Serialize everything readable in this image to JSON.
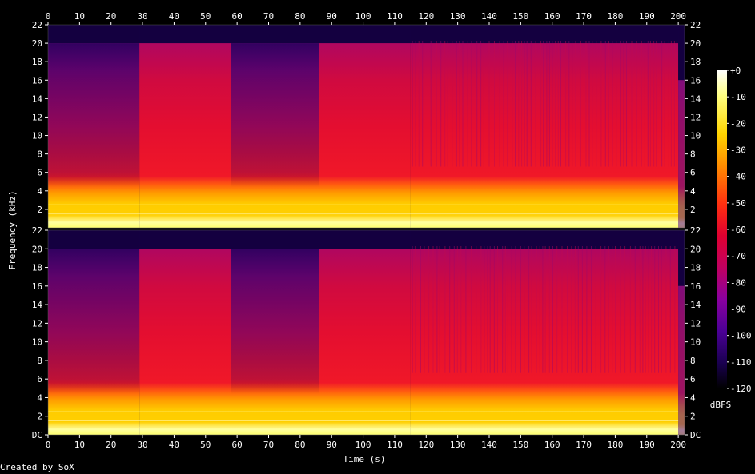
{
  "chart_data": {
    "type": "heatmap",
    "title": "",
    "xlabel": "Time (s)",
    "ylabel": "Frequency (kHz)",
    "xlim": [
      0,
      202
    ],
    "ylim": [
      0,
      22
    ],
    "x_ticks": [
      "0",
      "10",
      "20",
      "30",
      "40",
      "50",
      "60",
      "70",
      "80",
      "90",
      "100",
      "110",
      "120",
      "130",
      "140",
      "150",
      "160",
      "170",
      "180",
      "190",
      "200"
    ],
    "y_ticks_top": [
      "22",
      "20",
      "18",
      "16",
      "14",
      "12",
      "10",
      "8",
      "6",
      "4",
      "2"
    ],
    "y_ticks_bottom": [
      "22",
      "20",
      "18",
      "16",
      "14",
      "12",
      "10",
      "8",
      "6",
      "4",
      "2",
      "DC"
    ],
    "channels": [
      {
        "segments": [
          {
            "t_start": 0,
            "t_end": 29,
            "cutoff_khz": 20,
            "level": "quiet"
          },
          {
            "t_start": 29,
            "t_end": 58,
            "cutoff_khz": 20,
            "level": "loud"
          },
          {
            "t_start": 58,
            "t_end": 86,
            "cutoff_khz": 20,
            "level": "quiet"
          },
          {
            "t_start": 86,
            "t_end": 115,
            "cutoff_khz": 20,
            "level": "loud"
          },
          {
            "t_start": 115,
            "t_end": 200,
            "cutoff_khz": 20,
            "level": "pulsed"
          },
          {
            "t_start": 200,
            "t_end": 202,
            "cutoff_khz": 16,
            "level": "fade"
          }
        ]
      },
      {
        "segments": [
          {
            "t_start": 0,
            "t_end": 29,
            "cutoff_khz": 20,
            "level": "quiet"
          },
          {
            "t_start": 29,
            "t_end": 58,
            "cutoff_khz": 20,
            "level": "loud"
          },
          {
            "t_start": 58,
            "t_end": 86,
            "cutoff_khz": 20,
            "level": "quiet"
          },
          {
            "t_start": 86,
            "t_end": 115,
            "cutoff_khz": 20,
            "level": "loud"
          },
          {
            "t_start": 115,
            "t_end": 200,
            "cutoff_khz": 20,
            "level": "pulsed"
          },
          {
            "t_start": 200,
            "t_end": 202,
            "cutoff_khz": 16,
            "level": "fade"
          }
        ]
      }
    ],
    "colorbar": {
      "label": "dBFS",
      "range": [
        -120,
        0
      ],
      "ticks": [
        "+0",
        "-10",
        "-20",
        "-30",
        "-40",
        "-50",
        "-60",
        "-70",
        "-80",
        "-90",
        "-100",
        "-110",
        "-120"
      ],
      "colors": [
        "#ffffff",
        "#ffff80",
        "#ffd400",
        "#ff8c00",
        "#ff3010",
        "#e00030",
        "#c00060",
        "#8a00a0",
        "#4b0096",
        "#1a0050",
        "#000000"
      ]
    },
    "grid": false
  },
  "footer": {
    "credit": "Created by SoX"
  },
  "colors": {
    "background": "#000000",
    "text": "#ffffff",
    "cutoff_band": "#140040"
  }
}
